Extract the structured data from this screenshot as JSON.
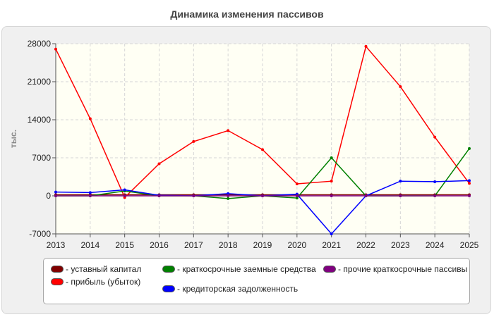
{
  "chart_data": {
    "type": "line",
    "title": "Динамика изменения пассивов",
    "ylabel": "тыс.",
    "xlabel": "",
    "x": [
      "2013",
      "2014",
      "2015",
      "2016",
      "2017",
      "2018",
      "2019",
      "2020",
      "2021",
      "2022",
      "2023",
      "2024",
      "2025"
    ],
    "ylim": [
      -7000,
      28000
    ],
    "yticks": [
      "-7000",
      "0",
      "7000",
      "14000",
      "21000",
      "28000"
    ],
    "grid": true,
    "legend_position": "bottom",
    "series": [
      {
        "name": "- уставный капитал",
        "color": "#800000",
        "values": [
          200,
          200,
          200,
          200,
          200,
          200,
          200,
          200,
          200,
          200,
          200,
          200,
          200
        ]
      },
      {
        "name": "- прибыль (убыток)",
        "color": "#ff0000",
        "values": [
          27000,
          14200,
          -300,
          5900,
          10000,
          12000,
          8500,
          2200,
          2700,
          27500,
          20100,
          10800,
          2300
        ]
      },
      {
        "name": "- краткосрочные заемные средства",
        "color": "#008000",
        "values": [
          0,
          0,
          900,
          0,
          0,
          -500,
          0,
          -400,
          7000,
          0,
          0,
          0,
          8700
        ]
      },
      {
        "name": "- кредиторская задолженность",
        "color": "#0000ff",
        "values": [
          700,
          600,
          1100,
          100,
          0,
          400,
          0,
          300,
          -7000,
          0,
          2700,
          2600,
          2800
        ]
      },
      {
        "name": "- прочие краткосрочные пассивы",
        "color": "#800080",
        "values": [
          0,
          0,
          0,
          0,
          0,
          0,
          0,
          0,
          0,
          0,
          0,
          0,
          0
        ]
      }
    ]
  }
}
